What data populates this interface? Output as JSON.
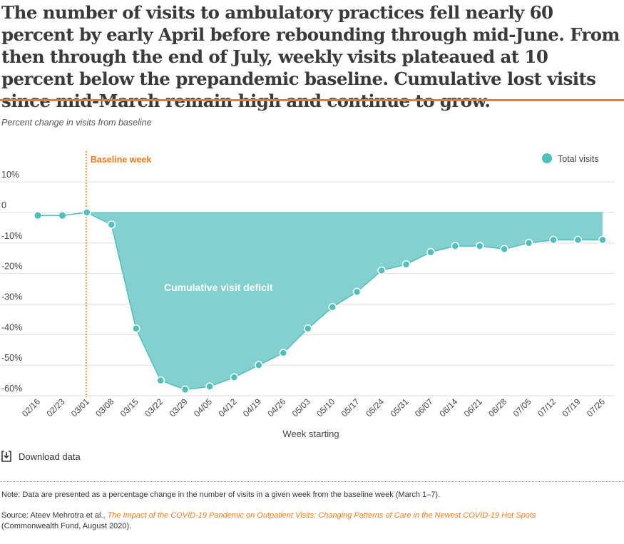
{
  "title": "The number of visits to ambulatory practices fell nearly 60 percent by early April before rebounding through mid-June. From then through the end of July, weekly visits plateaued at 10 percent below the prepandemic baseline. Cumulative lost visits since mid-March remain high and continue to grow.",
  "download_label": "Download data",
  "download_icon": "download-icon",
  "note": "Note: Data are presented as a percentage change in the number of visits in a given week from the baseline week (March 1–7).",
  "source": {
    "prefix": "Source: Ateev Mehrotra et al., ",
    "link_text": "The Impact of the COVID-19 Pandemic on Outpatient Visits: Changing Patterns of Care in the Newest COVID-19 Hot Spots",
    "suffix": "(Commonwealth Fund, August 2020)."
  },
  "colors": {
    "series": "#4fbfbb",
    "fill": "#82d0cf",
    "accent": "#f47b20",
    "grid": "#dddddd"
  },
  "chart_data": {
    "type": "area",
    "ylabel": "Percent change in visits from baseline",
    "xlabel": "Week starting",
    "ylim": [
      -60,
      10
    ],
    "yticks": [
      10,
      0,
      -10,
      -20,
      -30,
      -40,
      -50,
      -60
    ],
    "ytick_labels": [
      "10%",
      "0",
      "-10%",
      "-20%",
      "-30%",
      "-40%",
      "-50%",
      "-60%"
    ],
    "grid": true,
    "legend_position": "top-right",
    "categories": [
      "02/16",
      "02/23",
      "03/01",
      "03/08",
      "03/15",
      "03/22",
      "03/29",
      "04/05",
      "04/12",
      "04/19",
      "04/26",
      "05/03",
      "05/10",
      "05/17",
      "05/24",
      "05/31",
      "06/07",
      "06/14",
      "06/21",
      "06/28",
      "07/05",
      "07/12",
      "07/19",
      "07/26"
    ],
    "series": [
      {
        "name": "Total visits",
        "values": [
          -1,
          -1,
          0,
          -4,
          -38,
          -55,
          -58,
          -57,
          -54,
          -50,
          -46,
          -38,
          -31,
          -26,
          -19,
          -17,
          -13,
          -11,
          -11,
          -12,
          -10,
          -9,
          -9,
          -9
        ]
      }
    ],
    "annotations": {
      "baseline": {
        "label": "Baseline week",
        "category": "03/01"
      },
      "area_label": "Cumulative visit deficit"
    }
  }
}
